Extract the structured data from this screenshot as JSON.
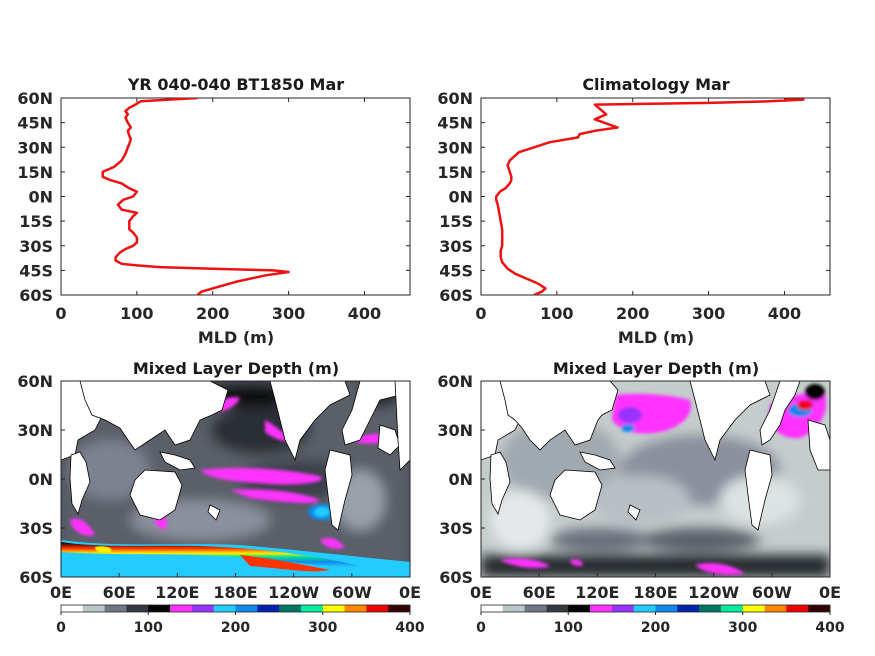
{
  "chart_data": [
    {
      "type": "line",
      "title": "YR 040-040 BT1850 Mar",
      "xlabel": "MLD (m)",
      "ylabel": "",
      "xlim": [
        0,
        460
      ],
      "ylim": [
        -60,
        60
      ],
      "xticks": [
        0,
        100,
        200,
        300,
        400
      ],
      "yticks": [
        "60N",
        "45N",
        "30N",
        "15N",
        "0N",
        "15S",
        "30S",
        "45S",
        "60S"
      ],
      "series": [
        {
          "color": "#ee1111",
          "mld": [
            180,
            105,
            98,
            90,
            85,
            88,
            85,
            88,
            92,
            88,
            90,
            92,
            90,
            88,
            85,
            80,
            70,
            55,
            55,
            65,
            80,
            90,
            100,
            95,
            82,
            75,
            80,
            100,
            95,
            90,
            90,
            90,
            95,
            100,
            100,
            95,
            85,
            78,
            72,
            72,
            80,
            100,
            130,
            200,
            280,
            300,
            270,
            230,
            200,
            185,
            180
          ],
          "lat": [
            60,
            58,
            56,
            54,
            52,
            50,
            48,
            45,
            42,
            40,
            37,
            35,
            32,
            30,
            26,
            22,
            18,
            15,
            12,
            10,
            8,
            5,
            3,
            0,
            -2,
            -5,
            -8,
            -10,
            -12,
            -15,
            -17,
            -20,
            -22,
            -25,
            -28,
            -30,
            -32,
            -34,
            -37,
            -39,
            -41,
            -42,
            -43,
            -44,
            -45,
            -46,
            -48,
            -52,
            -56,
            -58,
            -60
          ]
        }
      ]
    },
    {
      "type": "line",
      "title": "Climatology Mar",
      "xlabel": "MLD (m)",
      "ylabel": "",
      "xlim": [
        0,
        460
      ],
      "ylim": [
        -60,
        60
      ],
      "xticks": [
        0,
        100,
        200,
        300,
        400
      ],
      "yticks": [
        "60N",
        "45N",
        "30N",
        "15N",
        "0N",
        "15S",
        "30S",
        "45S",
        "60S"
      ],
      "series": [
        {
          "color": "#ee1111",
          "mld": [
            400,
            425,
            380,
            300,
            150,
            160,
            165,
            150,
            180,
            150,
            130,
            128,
            90,
            70,
            50,
            38,
            35,
            38,
            40,
            40,
            38,
            32,
            25,
            20,
            20,
            22,
            24,
            26,
            28,
            28,
            28,
            28,
            26,
            26,
            28,
            35,
            45,
            60,
            75,
            85,
            80,
            70
          ],
          "lat": [
            59,
            59,
            58,
            57,
            56,
            52,
            50,
            47,
            42,
            40,
            38,
            36,
            33,
            30,
            27,
            22,
            19,
            15,
            12,
            10,
            8,
            5,
            3,
            0,
            -2,
            -5,
            -10,
            -15,
            -20,
            -23,
            -25,
            -30,
            -33,
            -37,
            -40,
            -44,
            -47,
            -50,
            -53,
            -56,
            -58,
            -60
          ]
        }
      ]
    },
    {
      "type": "heatmap",
      "title": "Mixed Layer Depth (m)",
      "xticks": [
        "0E",
        "60E",
        "120E",
        "180E",
        "120W",
        "60W",
        "0E"
      ],
      "yticks": [
        "60N",
        "30N",
        "0N",
        "30S",
        "60S"
      ],
      "colorbar": {
        "ticks": [
          "0",
          "100",
          "200",
          "300",
          "400"
        ],
        "colors": [
          "#ffffff",
          "#b8c8c8",
          "#707888",
          "#333842",
          "#000000",
          "#ff33ff",
          "#9933ff",
          "#22ccff",
          "#1188ee",
          "#0022aa",
          "#007766",
          "#00ee99",
          "#ffff00",
          "#ff8800",
          "#ee0000",
          "#330000"
        ]
      }
    },
    {
      "type": "heatmap",
      "title": "Mixed Layer Depth (m)",
      "xticks": [
        "0E",
        "60E",
        "120E",
        "180E",
        "120W",
        "60W",
        "0E"
      ],
      "yticks": [
        "60N",
        "30N",
        "0N",
        "30S",
        "60S"
      ],
      "colorbar": {
        "ticks": [
          "0",
          "100",
          "200",
          "300",
          "400"
        ],
        "colors": [
          "#ffffff",
          "#b8c8c8",
          "#707888",
          "#333842",
          "#000000",
          "#ff33ff",
          "#9933ff",
          "#22ccff",
          "#1188ee",
          "#0022aa",
          "#007766",
          "#00ee99",
          "#ffff00",
          "#ff8800",
          "#ee0000",
          "#330000"
        ]
      }
    }
  ]
}
